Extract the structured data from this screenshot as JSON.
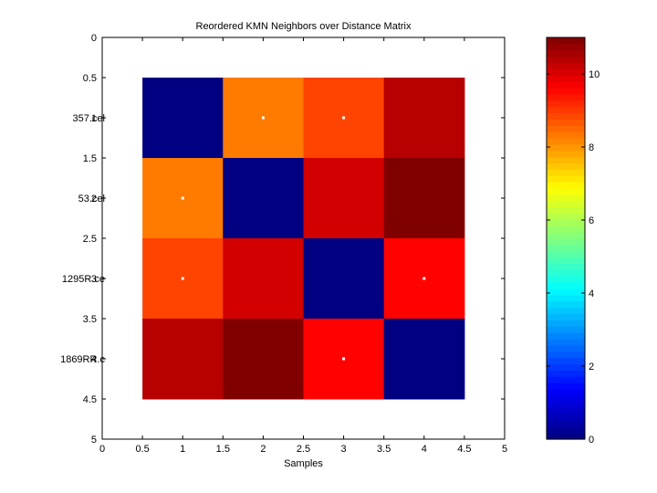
{
  "chart_data": {
    "type": "heatmap",
    "title": "Reordered KMN Neighbors over Distance Matrix",
    "xlabel": "Samples",
    "ylabel": "",
    "xlim": [
      0,
      5
    ],
    "ylim": [
      0,
      5
    ],
    "y_reversed": true,
    "x_ticks": [
      0,
      0.5,
      1,
      1.5,
      2,
      2.5,
      3,
      3.5,
      4,
      4.5,
      5
    ],
    "y_ticks": [
      0,
      0.5,
      1,
      1.5,
      2,
      2.5,
      3,
      3.5,
      4,
      4.5,
      5
    ],
    "x_tick_labels": [
      "0",
      "0.5",
      "1",
      "1.5",
      "2",
      "2.5",
      "3",
      "3.5",
      "4",
      "4.5",
      "5"
    ],
    "y_tick_labels": [
      "0",
      "0.5",
      "1",
      "1.5",
      "2",
      "2.5",
      "3",
      "3.5",
      "4",
      "4.5",
      "5"
    ],
    "row_labels_overlay": [
      {
        "row": 1,
        "tick_text": "1",
        "sample_text": "357.cel"
      },
      {
        "row": 2,
        "tick_text": "2",
        "sample_text": "53.cel"
      },
      {
        "row": 3,
        "tick_text": "3",
        "sample_text": "1295R.ce"
      },
      {
        "row": 4,
        "tick_text": "4",
        "sample_text": "1869RR.c"
      }
    ],
    "matrix": [
      [
        0,
        8.3,
        8.9,
        10.4
      ],
      [
        8.3,
        0,
        10.1,
        11.0
      ],
      [
        8.9,
        10.1,
        0,
        9.6
      ],
      [
        10.4,
        11.0,
        9.6,
        0
      ]
    ],
    "neighbor_markers": [
      {
        "row": 1,
        "col": 2
      },
      {
        "row": 1,
        "col": 3
      },
      {
        "row": 2,
        "col": 1
      },
      {
        "row": 3,
        "col": 1
      },
      {
        "row": 3,
        "col": 4
      },
      {
        "row": 4,
        "col": 3
      }
    ],
    "colorbar": {
      "colormap": "jet",
      "min": 0,
      "max": 11,
      "ticks": [
        0,
        2,
        4,
        6,
        8,
        10
      ],
      "tick_labels": [
        "0",
        "2",
        "4",
        "6",
        "8",
        "10"
      ]
    },
    "grid": false,
    "legend": "none"
  }
}
